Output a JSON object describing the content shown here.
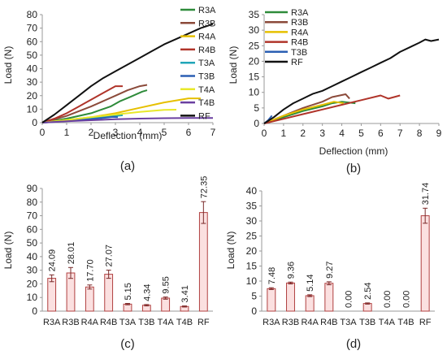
{
  "chart_data": [
    {
      "type": "line",
      "panel_label": "(a)",
      "xlabel": "Deflection (mm)",
      "ylabel": "Load (N)",
      "xlim": [
        0,
        7
      ],
      "ylim": [
        0,
        80
      ],
      "xticks": [
        0,
        1,
        2,
        3,
        4,
        5,
        6,
        7
      ],
      "yticks": [
        0,
        10,
        20,
        30,
        40,
        50,
        60,
        70,
        80
      ],
      "legend_position": "top-right",
      "series": [
        {
          "name": "R3A",
          "color": "#2e8b3a",
          "points": [
            [
              0,
              0
            ],
            [
              1,
              3
            ],
            [
              2,
              7
            ],
            [
              2.8,
              12
            ],
            [
              3.2,
              16
            ],
            [
              3.6,
              19
            ],
            [
              4.1,
              23
            ],
            [
              4.3,
              24
            ]
          ]
        },
        {
          "name": "R3B",
          "color": "#8b4a3a",
          "points": [
            [
              0,
              0
            ],
            [
              1,
              5
            ],
            [
              2,
              12
            ],
            [
              3,
              20
            ],
            [
              3.5,
              24
            ],
            [
              4,
              27
            ],
            [
              4.3,
              28
            ]
          ]
        },
        {
          "name": "R4A",
          "color": "#e6c000",
          "points": [
            [
              0,
              0
            ],
            [
              1,
              2
            ],
            [
              2,
              4
            ],
            [
              3,
              7
            ],
            [
              4,
              11
            ],
            [
              5,
              15
            ],
            [
              6,
              18
            ],
            [
              6.5,
              18
            ]
          ]
        },
        {
          "name": "R4B",
          "color": "#b0342a",
          "points": [
            [
              0,
              0
            ],
            [
              0.5,
              3
            ],
            [
              1,
              7
            ],
            [
              1.5,
              12
            ],
            [
              2,
              17
            ],
            [
              2.5,
              22
            ],
            [
              3,
              27
            ],
            [
              3.3,
              27
            ]
          ]
        },
        {
          "name": "T3A",
          "color": "#21a6b8",
          "points": [
            [
              0,
              0
            ],
            [
              1,
              1.5
            ],
            [
              2,
              3
            ],
            [
              2.5,
              4
            ],
            [
              3,
              5
            ],
            [
              3.3,
              5.5
            ]
          ]
        },
        {
          "name": "T3B",
          "color": "#2b5fb3",
          "points": [
            [
              0,
              0
            ],
            [
              1,
              1.2
            ],
            [
              2,
              2.5
            ],
            [
              2.5,
              3.5
            ],
            [
              2.9,
              4.3
            ],
            [
              3.1,
              4
            ]
          ]
        },
        {
          "name": "T4A",
          "color": "#e8e82a",
          "points": [
            [
              0,
              0
            ],
            [
              1,
              2
            ],
            [
              2,
              4
            ],
            [
              3,
              6
            ],
            [
              4,
              8
            ],
            [
              5,
              9.5
            ],
            [
              5.5,
              9.6
            ]
          ]
        },
        {
          "name": "T4B",
          "color": "#6a3fa0",
          "points": [
            [
              0,
              0
            ],
            [
              1,
              1
            ],
            [
              2,
              1.8
            ],
            [
              3,
              2.5
            ],
            [
              4,
              3
            ],
            [
              5,
              3.3
            ],
            [
              6,
              3.4
            ],
            [
              7,
              3.4
            ]
          ]
        },
        {
          "name": "RF",
          "color": "#111111",
          "points": [
            [
              0,
              0
            ],
            [
              0.5,
              6
            ],
            [
              1,
              13
            ],
            [
              1.5,
              20
            ],
            [
              2,
              27
            ],
            [
              2.5,
              33
            ],
            [
              3,
              38
            ],
            [
              3.5,
              43
            ],
            [
              4,
              48
            ],
            [
              4.5,
              53
            ],
            [
              5,
              58
            ],
            [
              5.5,
              62
            ],
            [
              6,
              66
            ],
            [
              6.5,
              70
            ],
            [
              7,
              73
            ]
          ]
        }
      ]
    },
    {
      "type": "line",
      "panel_label": "(b)",
      "xlabel": "Deflection (mm)",
      "ylabel": "Load (N)",
      "xlim": [
        0,
        9
      ],
      "ylim": [
        0,
        35
      ],
      "xticks": [
        0,
        1,
        2,
        3,
        4,
        5,
        6,
        7,
        8,
        9
      ],
      "yticks": [
        0,
        5,
        10,
        15,
        20,
        25,
        30,
        35
      ],
      "legend_position": "top-left",
      "series": [
        {
          "name": "R3A",
          "color": "#2e8b3a",
          "points": [
            [
              0,
              0
            ],
            [
              1,
              2
            ],
            [
              2,
              4
            ],
            [
              3,
              5.5
            ],
            [
              3.5,
              6.5
            ],
            [
              4,
              7
            ],
            [
              4.7,
              6.5
            ]
          ]
        },
        {
          "name": "R3B",
          "color": "#8b4a3a",
          "points": [
            [
              0,
              0
            ],
            [
              1,
              2.5
            ],
            [
              2,
              5
            ],
            [
              3,
              7
            ],
            [
              3.5,
              8.5
            ],
            [
              4.2,
              9.4
            ],
            [
              4.4,
              8
            ]
          ]
        },
        {
          "name": "R4A",
          "color": "#e6c000",
          "points": [
            [
              0,
              0
            ],
            [
              1,
              2.5
            ],
            [
              2,
              4.5
            ],
            [
              3,
              6
            ],
            [
              3.6,
              7
            ],
            [
              4.1,
              6.5
            ]
          ]
        },
        {
          "name": "R4B",
          "color": "#b0342a",
          "points": [
            [
              0,
              0
            ],
            [
              1,
              1.5
            ],
            [
              2,
              3
            ],
            [
              3,
              4.5
            ],
            [
              4,
              6
            ],
            [
              5,
              7.5
            ],
            [
              6,
              9
            ],
            [
              6.4,
              8
            ],
            [
              7,
              9
            ]
          ]
        },
        {
          "name": "T3B",
          "color": "#2b5fb3",
          "points": [
            [
              0,
              0
            ],
            [
              0.2,
              1
            ],
            [
              0.4,
              2.5
            ]
          ]
        },
        {
          "name": "RF",
          "color": "#111111",
          "points": [
            [
              0,
              0
            ],
            [
              0.5,
              2
            ],
            [
              1,
              4.5
            ],
            [
              1.5,
              6.5
            ],
            [
              2,
              8
            ],
            [
              2.5,
              9.5
            ],
            [
              3,
              10.5
            ],
            [
              3.5,
              12
            ],
            [
              4,
              13.5
            ],
            [
              4.5,
              15
            ],
            [
              5,
              16.5
            ],
            [
              5.5,
              18
            ],
            [
              6,
              19.5
            ],
            [
              6.5,
              21
            ],
            [
              7,
              23
            ],
            [
              7.5,
              24.5
            ],
            [
              8,
              26
            ],
            [
              8.3,
              27
            ],
            [
              8.6,
              26.5
            ],
            [
              9,
              27
            ]
          ]
        }
      ]
    },
    {
      "type": "bar",
      "panel_label": "(c)",
      "ylabel": "Load (N)",
      "ylim": [
        0,
        90
      ],
      "yticks": [
        0,
        10,
        20,
        30,
        40,
        50,
        60,
        70,
        80,
        90
      ],
      "categories": [
        "R3A",
        "R3B",
        "R4A",
        "R4B",
        "T3A",
        "T3B",
        "T4A",
        "T4B",
        "RF"
      ],
      "values": [
        24.09,
        28.01,
        17.7,
        27.07,
        5.15,
        4.34,
        9.55,
        3.41,
        72.35
      ],
      "value_labels": [
        "24.09",
        "28.01",
        "17.70",
        "27.07",
        "5.15",
        "4.34",
        "9.55",
        "3.41",
        "72.35"
      ],
      "errors": [
        2.5,
        4.0,
        1.5,
        3.0,
        0.5,
        0.5,
        0.8,
        0.4,
        8.0
      ],
      "bar_fill": "#fbe0e0",
      "bar_stroke": "#b04040"
    },
    {
      "type": "bar",
      "panel_label": "(d)",
      "ylabel": "Load (N)",
      "ylim": [
        0,
        40
      ],
      "yticks": [
        0,
        5,
        10,
        15,
        20,
        25,
        30,
        35,
        40
      ],
      "categories": [
        "R3A",
        "R3B",
        "R4A",
        "R4B",
        "T3A",
        "T3B",
        "T4A",
        "T4B",
        "RF"
      ],
      "values": [
        7.48,
        9.36,
        5.14,
        9.27,
        0.0,
        2.54,
        0.0,
        0.0,
        31.74
      ],
      "value_labels": [
        "7.48",
        "9.36",
        "5.14",
        "9.27",
        "0.00",
        "2.54",
        "0.00",
        "0.00",
        "31.74"
      ],
      "errors": [
        0.3,
        0.3,
        0.3,
        0.5,
        0,
        0.2,
        0,
        0,
        2.5
      ],
      "bar_fill": "#fbe0e0",
      "bar_stroke": "#b04040"
    }
  ]
}
